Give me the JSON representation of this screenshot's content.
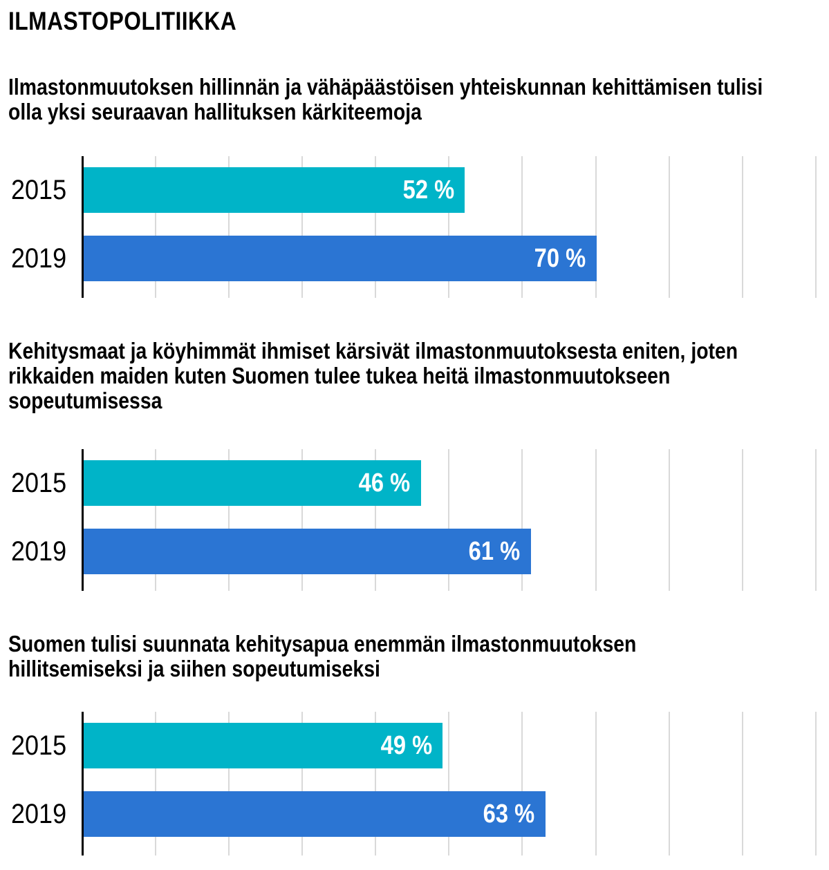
{
  "page_title": "ILMASTOPOLITIIKKA",
  "colors": {
    "year_2015": "#00b4c8",
    "year_2019": "#2b75d3",
    "gridline": "#d9d9d9",
    "axis": "#000000"
  },
  "chart_data": [
    {
      "type": "bar",
      "orientation": "horizontal",
      "title": "Ilmastonmuutoksen hillinnän ja vähäpäästöisen yhteiskunnan kehittämisen tulisi olla yksi seuraavan hallituksen kärkiteemoja",
      "categories": [
        "2015",
        "2019"
      ],
      "values": [
        52,
        70
      ],
      "labels": [
        "52 %",
        "70 %"
      ],
      "xlim": [
        0,
        100
      ],
      "grid": true
    },
    {
      "type": "bar",
      "orientation": "horizontal",
      "title": "Kehitysmaat ja köyhimmät ihmiset kärsivät ilmastonmuutoksesta eniten, joten rikkaiden maiden kuten Suomen tulee tukea heitä ilmastonmuutokseen sopeutumisessa",
      "categories": [
        "2015",
        "2019"
      ],
      "values": [
        46,
        61
      ],
      "labels": [
        "46 %",
        "61 %"
      ],
      "xlim": [
        0,
        100
      ],
      "grid": true
    },
    {
      "type": "bar",
      "orientation": "horizontal",
      "title": "Suomen tulisi suunnata kehitysapua enemmän ilmastonmuutoksen hillitsemiseksi ja siihen sopeutumiseksi",
      "categories": [
        "2015",
        "2019"
      ],
      "values": [
        49,
        63
      ],
      "labels": [
        "49 %",
        "63 %"
      ],
      "xlim": [
        0,
        100
      ],
      "grid": true
    }
  ]
}
